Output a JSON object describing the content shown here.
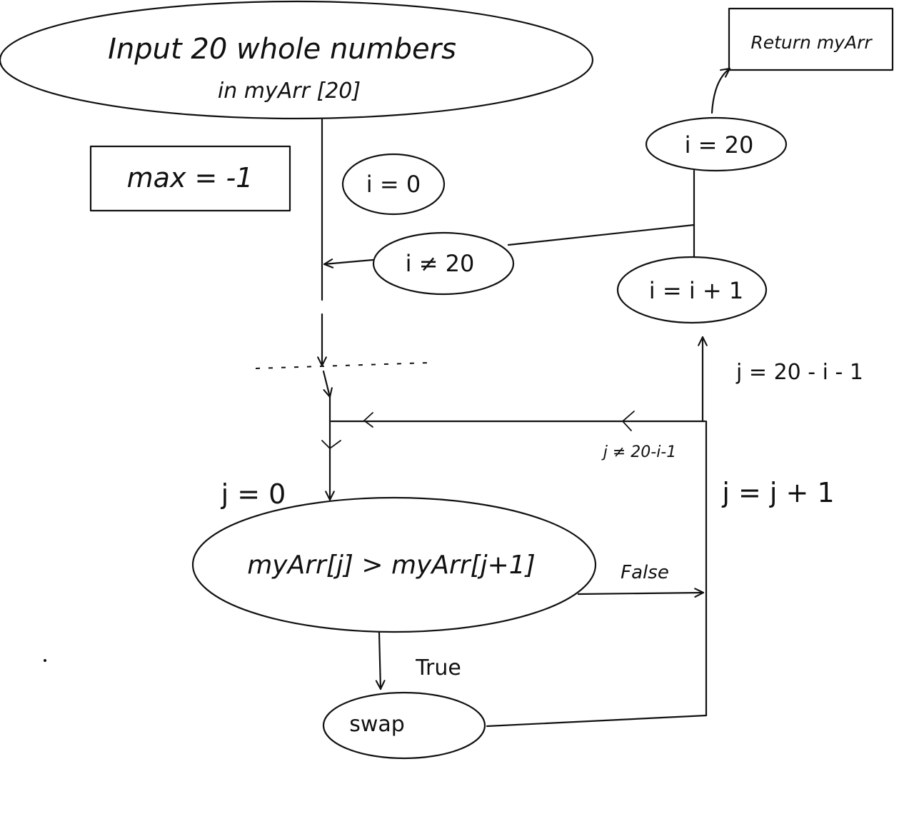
{
  "diagram": {
    "nodes": {
      "input": {
        "line1": "Input 20 whole numbers",
        "line2": "in myArr [20]"
      },
      "max_init": {
        "label": "max = -1"
      },
      "i_init": {
        "label": "i = 0"
      },
      "i_not_20": {
        "label": "i ≠ 20"
      },
      "i_eq_20": {
        "label": "i = 20"
      },
      "return": {
        "label": "Return myArr"
      },
      "i_increment": {
        "label": "i = i + 1"
      },
      "j_init": {
        "label": "j = 0"
      },
      "compare": {
        "label": "myArr[j] > myArr[j+1]"
      },
      "swap": {
        "label": "swap"
      },
      "j_increment": {
        "label": "j = j + 1"
      }
    },
    "edges": {
      "j_limit": {
        "label": "j = 20 - i - 1"
      },
      "j_not_limit": {
        "label": "j ≠ 20-i-1"
      },
      "false_branch": {
        "label": "False"
      },
      "true_branch": {
        "label": "True"
      }
    }
  }
}
